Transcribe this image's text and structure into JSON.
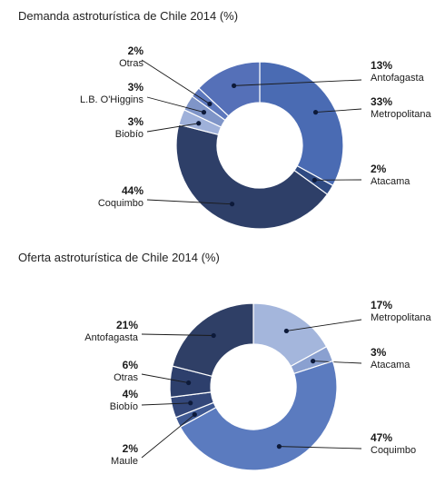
{
  "chart_data": [
    {
      "type": "donut",
      "title": "Demanda astroturística de Chile 2014 (%)",
      "unit": "%",
      "slices": [
        {
          "label": "Metropolitana",
          "value": 33,
          "display": "33%",
          "color": "#4a6bb3"
        },
        {
          "label": "Atacama",
          "value": 2,
          "display": "2%",
          "color": "#2f4a82"
        },
        {
          "label": "Coquimbo",
          "value": 44,
          "display": "44%",
          "color": "#2e3f68"
        },
        {
          "label": "Biobío",
          "value": 3,
          "display": "3%",
          "color": "#9fb1da"
        },
        {
          "label": "L.B. O'Higgins",
          "value": 3,
          "display": "3%",
          "color": "#7f95c8"
        },
        {
          "label": "Otras",
          "value": 2,
          "display": "2%",
          "color": "#5d78bd"
        },
        {
          "label": "Antofagasta",
          "value": 13,
          "display": "13%",
          "color": "#5570b8"
        }
      ]
    },
    {
      "type": "donut",
      "title": "Oferta astroturística de Chile 2014 (%)",
      "unit": "%",
      "slices": [
        {
          "label": "Metropolitana",
          "value": 17,
          "display": "17%",
          "color": "#a4b6dc"
        },
        {
          "label": "Atacama",
          "value": 3,
          "display": "3%",
          "color": "#8aa0d0"
        },
        {
          "label": "Coquimbo",
          "value": 47,
          "display": "47%",
          "color": "#5b7bbf"
        },
        {
          "label": "Maule",
          "value": 2,
          "display": "2%",
          "color": "#3f5993"
        },
        {
          "label": "Biobío",
          "value": 4,
          "display": "4%",
          "color": "#33477a"
        },
        {
          "label": "Otras",
          "value": 6,
          "display": "6%",
          "color": "#2d3f6c"
        },
        {
          "label": "Antofagasta",
          "value": 21,
          "display": "21%",
          "color": "#2f3f66"
        }
      ]
    }
  ]
}
